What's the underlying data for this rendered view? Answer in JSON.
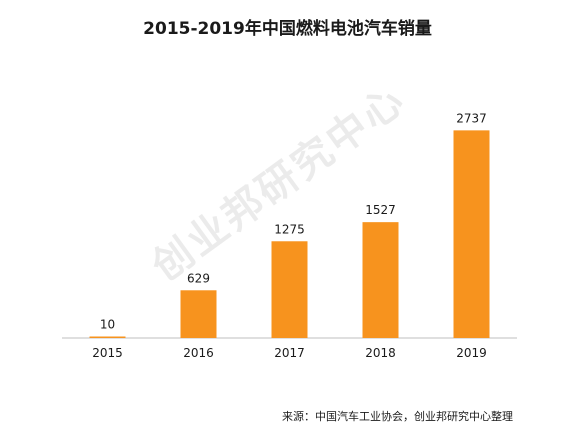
{
  "chart_data": {
    "type": "bar",
    "title": "2015-2019年中国燃料电池汽车销量",
    "categories": [
      "2015",
      "2016",
      "2017",
      "2018",
      "2019"
    ],
    "values": [
      10,
      629,
      1275,
      1527,
      2737
    ],
    "data_labels": [
      "10",
      "629",
      "1275",
      "1527",
      "2737"
    ],
    "ylim": [
      0,
      2900
    ],
    "grid": false,
    "legend": "none",
    "bar_color": "#F7931E"
  },
  "watermark": "创业邦研究中心",
  "source": "来源：中国汽车工业协会，创业邦研究中心整理"
}
